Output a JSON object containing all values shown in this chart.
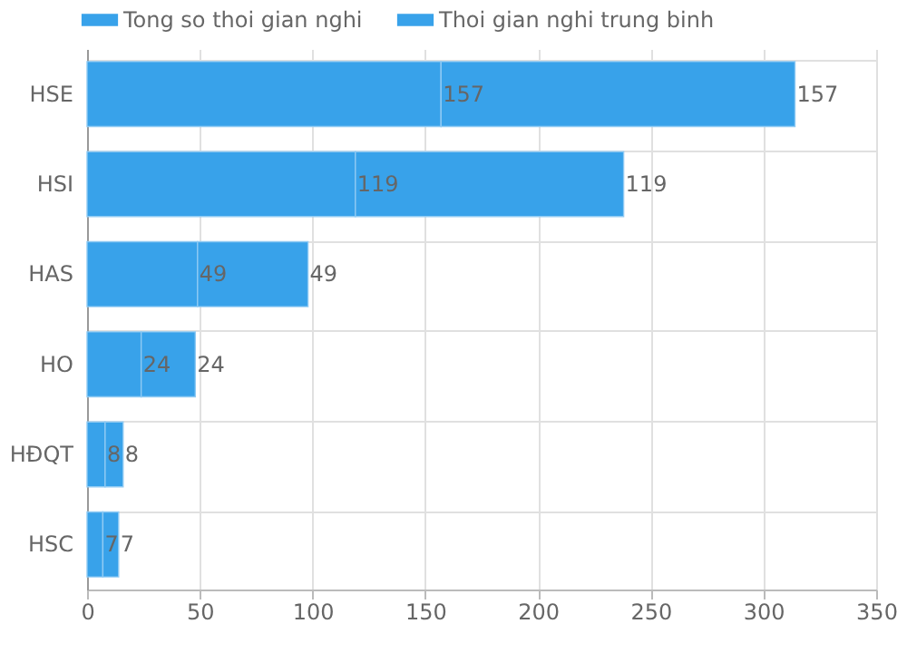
{
  "chart_data": {
    "type": "bar",
    "orientation": "horizontal",
    "stacked": true,
    "categories": [
      "HSE",
      "HSI",
      "HAS",
      "HO",
      "HĐQT",
      "HSC"
    ],
    "series": [
      {
        "name": "Tong so thoi gian nghi",
        "color": "#38a2ea",
        "values": [
          157,
          119,
          49,
          24,
          8,
          7
        ]
      },
      {
        "name": "Thoi gian nghi trung binh",
        "color": "#38a2ea",
        "values": [
          157,
          119,
          49,
          24,
          8,
          7
        ]
      }
    ],
    "xlim": [
      0,
      350
    ],
    "xticks": [
      0,
      50,
      100,
      150,
      200,
      250,
      300,
      350
    ],
    "data_labels": true,
    "grid": true,
    "legend": "top"
  }
}
